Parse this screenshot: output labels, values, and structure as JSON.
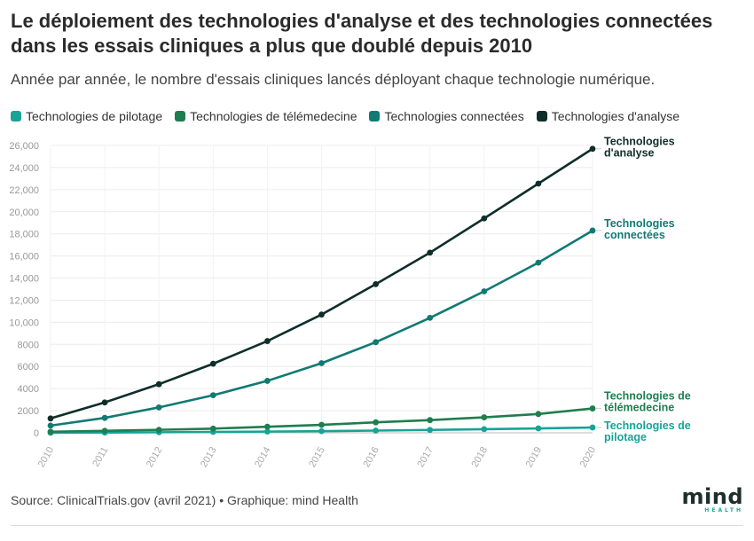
{
  "header": {
    "title": "Le déploiement des technologies d'analyse et des technologies connectées dans les essais cliniques a plus que doublé depuis 2010",
    "subtitle": "Année par année, le nombre d'essais cliniques lancés déployant chaque technologie numérique."
  },
  "footer": {
    "source": "Source: ClinicalTrials.gov (avril 2021) • Graphique: mind Health"
  },
  "logo": {
    "word": "mind",
    "sub": "HEALTH"
  },
  "colors": {
    "pilotage": "#17a398",
    "telemedecine": "#1e7e4e",
    "connectees": "#117a72",
    "analyse": "#0f2e2a"
  },
  "chart_data": {
    "type": "line",
    "title": "Le déploiement des technologies d'analyse et des technologies connectées dans les essais cliniques a plus que doublé depuis 2010",
    "x": [
      "2010",
      "2011",
      "2012",
      "2013",
      "2014",
      "2015",
      "2016",
      "2017",
      "2018",
      "2019",
      "2020"
    ],
    "ylim": [
      0,
      26000
    ],
    "yticks": [
      "0",
      "2000",
      "4000",
      "6000",
      "8000",
      "10,000",
      "12,000",
      "14,000",
      "16,000",
      "18,000",
      "20,000",
      "22,000",
      "24,000",
      "26,000"
    ],
    "grid": true,
    "legend_position": "top-left",
    "series": [
      {
        "key": "pilotage",
        "name": "Technologies de pilotage",
        "end_label": [
          "Technologies de",
          "pilotage"
        ],
        "values": [
          0,
          20,
          50,
          80,
          110,
          150,
          200,
          260,
          330,
          400,
          480
        ]
      },
      {
        "key": "telemedecine",
        "name": "Technologies de télémedecine",
        "end_label": [
          "Technologies de",
          "télémedecine"
        ],
        "values": [
          100,
          180,
          270,
          380,
          550,
          720,
          950,
          1150,
          1400,
          1700,
          2200
        ]
      },
      {
        "key": "connectees",
        "name": "Technologies connectées",
        "end_label": [
          "Technologies",
          "connectées"
        ],
        "values": [
          650,
          1350,
          2300,
          3400,
          4700,
          6300,
          8200,
          10400,
          12800,
          15400,
          18300
        ]
      },
      {
        "key": "analyse",
        "name": "Technologies d'analyse",
        "end_label": [
          "Technologies",
          "d'analyse"
        ],
        "values": [
          1300,
          2750,
          4400,
          6250,
          8300,
          10700,
          13450,
          16300,
          19400,
          22550,
          25700
        ]
      }
    ]
  }
}
